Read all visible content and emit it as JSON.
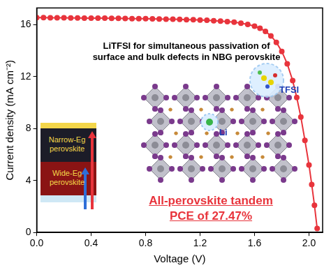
{
  "chart_data": {
    "type": "line",
    "x_label": "Voltage (V)",
    "y_label": "Current density (mA cm⁻²)",
    "xlim": [
      0,
      2.1
    ],
    "ylim": [
      0,
      17.3
    ],
    "xticks": [
      {
        "value": 0,
        "label": "0.0"
      },
      {
        "value": 0.4,
        "label": "0.4"
      },
      {
        "value": 0.8,
        "label": "0.8"
      },
      {
        "value": 1.2,
        "label": "1.2"
      },
      {
        "value": 1.6,
        "label": "1.6"
      },
      {
        "value": 2.0,
        "label": "2.0"
      }
    ],
    "yticks": [
      0,
      4,
      8,
      12,
      16
    ],
    "grid": false,
    "color": "#e8343c",
    "marker": "circle",
    "line_style": "solid",
    "x": [
      0,
      0.05,
      0.1,
      0.15,
      0.2,
      0.25,
      0.3,
      0.35,
      0.4,
      0.45,
      0.5,
      0.55,
      0.6,
      0.65,
      0.7,
      0.75,
      0.8,
      0.85,
      0.9,
      0.95,
      1.0,
      1.05,
      1.1,
      1.15,
      1.2,
      1.25,
      1.3,
      1.35,
      1.4,
      1.45,
      1.5,
      1.55,
      1.6,
      1.64,
      1.68,
      1.72,
      1.76,
      1.8,
      1.84,
      1.88,
      1.91,
      1.94,
      1.97,
      2.0,
      2.02,
      2.04,
      2.06
    ],
    "values": [
      16.55,
      16.55,
      16.54,
      16.54,
      16.54,
      16.53,
      16.53,
      16.52,
      16.52,
      16.51,
      16.51,
      16.5,
      16.5,
      16.49,
      16.48,
      16.48,
      16.47,
      16.46,
      16.45,
      16.44,
      16.43,
      16.42,
      16.4,
      16.39,
      16.37,
      16.35,
      16.32,
      16.29,
      16.25,
      16.2,
      16.13,
      16.03,
      15.9,
      15.74,
      15.5,
      15.15,
      14.65,
      13.95,
      13.0,
      11.7,
      10.4,
      8.9,
      7.1,
      5.2,
      3.7,
      2.1,
      0.3
    ],
    "annotations": [
      "LiTFSI for simultaneous passivation of",
      "surface and bulk defects in NBG perovskite",
      "All-perovskite tandem",
      "PCE of 27.47%"
    ],
    "inset": {
      "layers": [
        "Narrow-Eg perovskite",
        "Wide-Eg perovskite"
      ],
      "labels": [
        "TFSI",
        "Li"
      ]
    }
  }
}
